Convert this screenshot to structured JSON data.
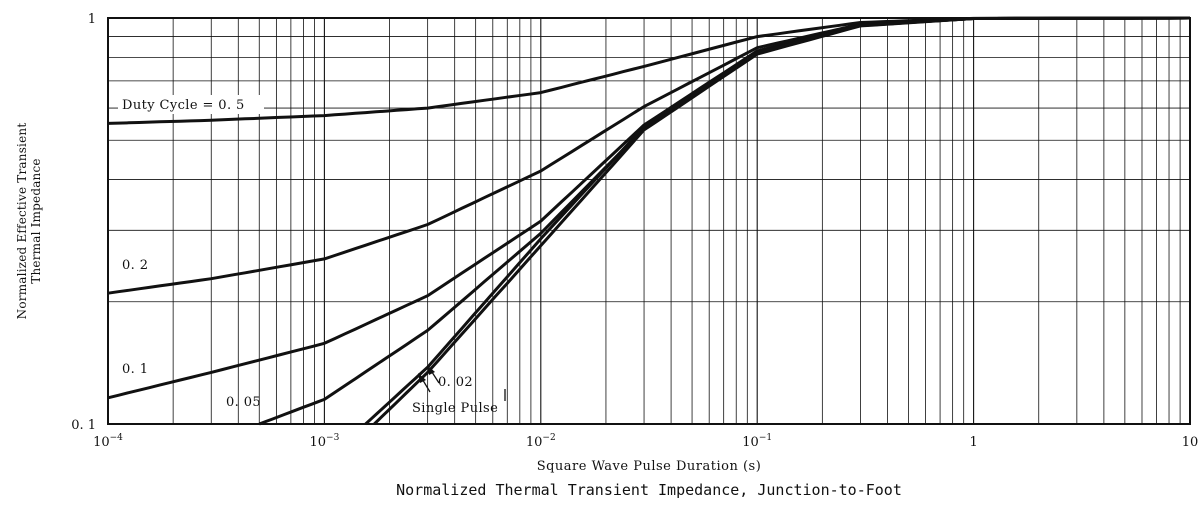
{
  "chart_data": {
    "type": "line",
    "title": "",
    "caption": "Normalized Thermal Transient Impedance, Junction-to-Foot",
    "xlabel": "Square Wave Pulse Duration (s)",
    "ylabel_lines": [
      "Normalized Effective Transient",
      "Thermal Impedance"
    ],
    "x_scale": "log",
    "y_scale": "log",
    "xlim": [
      0.0001,
      10
    ],
    "ylim": [
      0.1,
      1
    ],
    "grid": true,
    "x_ticks": [
      {
        "value": 0.0001,
        "base": "10",
        "exp": "−4"
      },
      {
        "value": 0.001,
        "base": "10",
        "exp": "−3"
      },
      {
        "value": 0.01,
        "base": "10",
        "exp": "−2"
      },
      {
        "value": 0.1,
        "base": "10",
        "exp": "−1"
      },
      {
        "value": 1,
        "base": "1",
        "exp": ""
      },
      {
        "value": 10,
        "base": "10",
        "exp": ""
      }
    ],
    "y_ticks": [
      {
        "value": 0.1,
        "label": "0. 1"
      },
      {
        "value": 1,
        "label": "1"
      }
    ],
    "series": [
      {
        "name": "Duty Cycle = 0. 5",
        "x": [
          0.0001,
          0.0003,
          0.001,
          0.003,
          0.01,
          0.03,
          0.1,
          0.3,
          1,
          10
        ],
        "y": [
          0.55,
          0.56,
          0.575,
          0.6,
          0.655,
          0.76,
          0.9,
          0.975,
          0.998,
          1.0
        ]
      },
      {
        "name": "0. 2",
        "x": [
          0.0001,
          0.0003,
          0.001,
          0.003,
          0.01,
          0.03,
          0.1,
          0.3,
          1,
          10
        ],
        "y": [
          0.21,
          0.228,
          0.255,
          0.31,
          0.42,
          0.605,
          0.845,
          0.965,
          0.997,
          1.0
        ]
      },
      {
        "name": "0. 1",
        "x": [
          0.0001,
          0.0003,
          0.001,
          0.003,
          0.01,
          0.03,
          0.1,
          0.3,
          1,
          10
        ],
        "y": [
          0.116,
          0.134,
          0.158,
          0.207,
          0.316,
          0.545,
          0.83,
          0.96,
          0.997,
          1.0
        ]
      },
      {
        "name": "0. 05",
        "x": [
          0.0005,
          0.001,
          0.003,
          0.01,
          0.03,
          0.1,
          0.3,
          1,
          10
        ],
        "y": [
          0.1,
          0.115,
          0.17,
          0.295,
          0.535,
          0.822,
          0.958,
          0.997,
          1.0
        ]
      },
      {
        "name": "0. 02",
        "x": [
          0.0017,
          0.003,
          0.01,
          0.03,
          0.1,
          0.3,
          1,
          10
        ],
        "y": [
          0.1,
          0.134,
          0.275,
          0.53,
          0.815,
          0.956,
          0.997,
          1.0
        ]
      },
      {
        "name": "Single Pulse",
        "x": [
          0.00155,
          0.003,
          0.01,
          0.03,
          0.1,
          0.3,
          1,
          10
        ],
        "y": [
          0.1,
          0.138,
          0.286,
          0.54,
          0.82,
          0.958,
          0.997,
          1.0
        ]
      }
    ],
    "annotations": [
      {
        "text": "Duty Cycle = 0. 5",
        "series": "Duty Cycle = 0. 5"
      },
      {
        "text": "0. 2",
        "series": "0. 2"
      },
      {
        "text": "0. 1",
        "series": "0. 1"
      },
      {
        "text": "0. 05",
        "series": "0. 05"
      },
      {
        "text": "0. 02",
        "series": "0. 02"
      },
      {
        "text": "Single Pulse",
        "series": "Single Pulse"
      }
    ]
  }
}
